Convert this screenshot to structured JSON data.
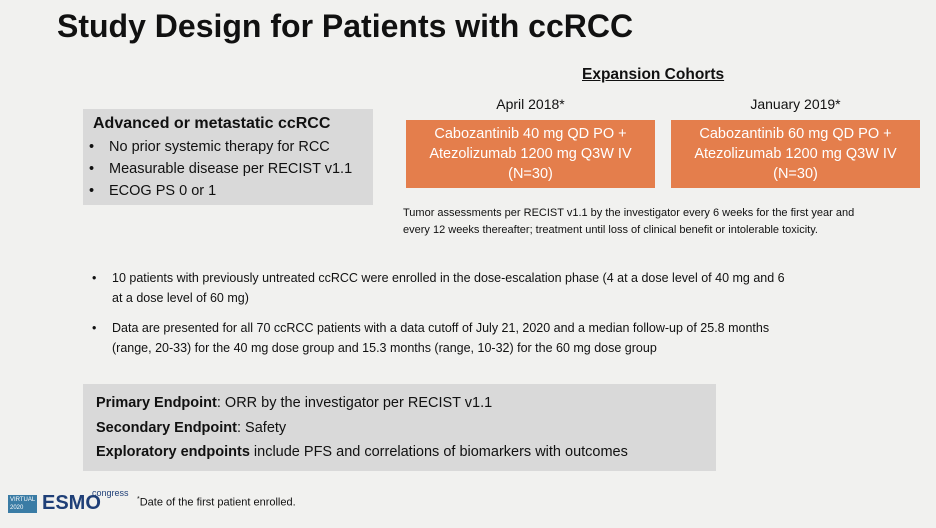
{
  "title": "Study Design for Patients with ccRCC",
  "population": {
    "heading": "Advanced or metastatic ccRCC",
    "bullets": [
      "No prior systemic therapy for RCC",
      "Measurable disease per RECIST v1.1",
      "ECOG PS 0 or 1"
    ]
  },
  "expansion": {
    "heading": "Expansion Cohorts",
    "cohorts": [
      {
        "date": "April 2018*",
        "lines": [
          "Cabozantinib 40 mg QD PO +",
          "Atezolizumab 1200 mg Q3W IV",
          "(N=30)"
        ]
      },
      {
        "date": "January 2019*",
        "lines": [
          "Cabozantinib 60 mg QD PO +",
          "Atezolizumab 1200 mg Q3W IV",
          "(N=30)"
        ]
      }
    ],
    "note": [
      "Tumor assessments per RECIST v1.1 by the investigator every 6 weeks for the first year and",
      "every 12 weeks thereafter; treatment until loss of clinical benefit or intolerable toxicity."
    ]
  },
  "bullets": [
    [
      "10 patients with previously untreated ccRCC were enrolled in the dose-escalation phase (4 at a dose level of 40 mg and 6",
      "at a dose level of 60 mg)"
    ],
    [
      "Data are presented for all 70 ccRCC patients with a data cutoff of July 21, 2020 and a median follow-up of 25.8 months",
      "(range, 20-33) for the 40 mg dose group and 15.3 months (range, 10-32) for the 60 mg dose group"
    ]
  ],
  "endpoints": [
    {
      "label": "Primary Endpoint",
      "text": ": ORR by the investigator per RECIST v1.1"
    },
    {
      "label": "Secondary Endpoint",
      "text": ": Safety"
    },
    {
      "label": "Exploratory endpoints",
      "text": " include PFS and correlations of biomarkers with outcomes"
    }
  ],
  "footnote": {
    "mark": "*",
    "text": "Date of the first patient enrolled."
  },
  "logo": {
    "virtual": "VIRTUAL",
    "year": "2020",
    "name": "ESMO",
    "sub": "congress"
  }
}
